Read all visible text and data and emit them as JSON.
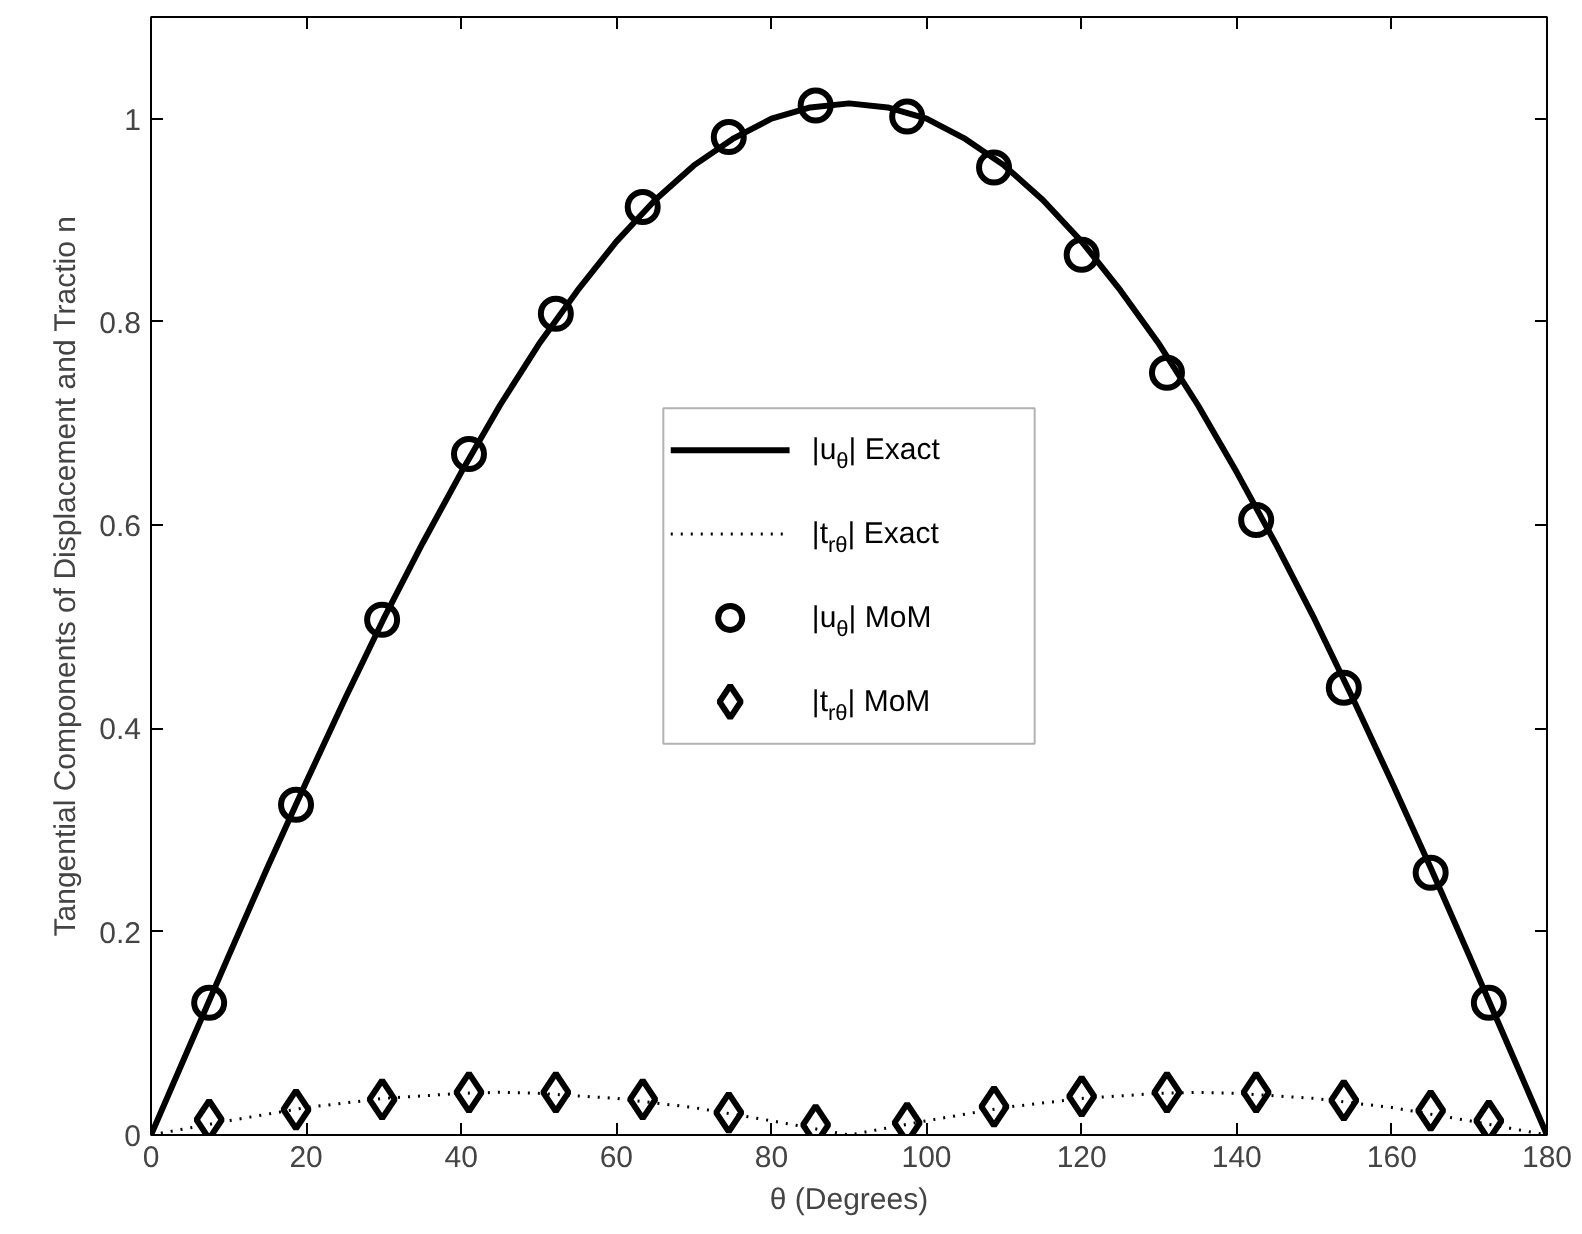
{
  "chart_data": {
    "type": "line",
    "xlabel": "θ (Degrees)",
    "ylabel": "Tangential Components of Displacement and Tractio n",
    "xlim": [
      0,
      180
    ],
    "ylim": [
      0,
      1.1
    ],
    "xticks": [
      0,
      20,
      40,
      60,
      80,
      100,
      120,
      140,
      160,
      180
    ],
    "yticks": [
      0,
      0.2,
      0.4,
      0.6,
      0.8,
      1
    ],
    "grid": false,
    "legend": "center",
    "series": [
      {
        "name": "|u$_{θ}$| Exact",
        "line_style": "solid",
        "color": "#000000",
        "x": [
          0,
          5,
          10,
          15,
          20,
          25,
          30,
          35,
          40,
          45,
          50,
          55,
          60,
          65,
          70,
          75,
          80,
          85,
          90,
          95,
          100,
          105,
          110,
          115,
          120,
          125,
          130,
          135,
          140,
          145,
          150,
          155,
          160,
          165,
          170,
          175,
          180
        ],
        "values": [
          0,
          0.088,
          0.176,
          0.263,
          0.347,
          0.429,
          0.508,
          0.582,
          0.652,
          0.718,
          0.778,
          0.831,
          0.879,
          0.92,
          0.954,
          0.98,
          1.0,
          1.011,
          1.015,
          1.011,
          1.0,
          0.98,
          0.954,
          0.92,
          0.879,
          0.831,
          0.778,
          0.718,
          0.652,
          0.582,
          0.508,
          0.429,
          0.347,
          0.263,
          0.176,
          0.088,
          0
        ]
      },
      {
        "name": "|t$_{rθ}$| Exact",
        "line_style": "dotted",
        "color": "#000000",
        "x": [
          0,
          10,
          20,
          30,
          40,
          45,
          50,
          60,
          70,
          80,
          90,
          100,
          110,
          120,
          130,
          135,
          140,
          150,
          160,
          170,
          180
        ],
        "values": [
          0,
          0.014,
          0.027,
          0.036,
          0.041,
          0.042,
          0.041,
          0.036,
          0.027,
          0.014,
          0,
          0.014,
          0.027,
          0.036,
          0.041,
          0.042,
          0.041,
          0.036,
          0.027,
          0.014,
          0
        ]
      },
      {
        "name": "|u$_{θ}$| MoM",
        "type": "scatter",
        "marker": "circle",
        "color": "#000000",
        "x": [
          7.5,
          18.7,
          29.8,
          41,
          52.2,
          63.4,
          74.5,
          85.7,
          97.5,
          108.7,
          120,
          131,
          142.5,
          153.8,
          165,
          172.5
        ],
        "values": [
          0.13,
          0.325,
          0.507,
          0.67,
          0.808,
          0.913,
          0.982,
          1.013,
          1.002,
          0.952,
          0.866,
          0.75,
          0.605,
          0.44,
          0.258,
          0.13
        ]
      },
      {
        "name": "|t$_{rθ}$| MoM",
        "type": "scatter",
        "marker": "diamond",
        "color": "#000000",
        "x": [
          7.5,
          18.7,
          29.8,
          41,
          52.2,
          63.4,
          74.5,
          85.7,
          97.5,
          108.7,
          120,
          131,
          142.5,
          153.8,
          165,
          172.5
        ],
        "values": [
          0.015,
          0.025,
          0.035,
          0.042,
          0.042,
          0.035,
          0.022,
          0.01,
          0.012,
          0.028,
          0.038,
          0.042,
          0.042,
          0.034,
          0.024,
          0.014
        ]
      }
    ]
  }
}
